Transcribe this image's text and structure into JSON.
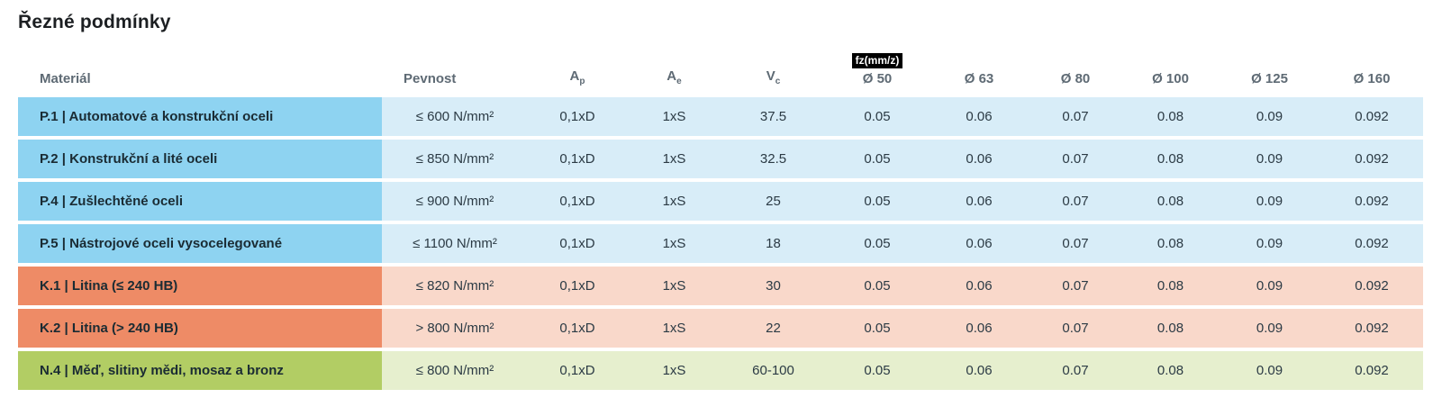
{
  "title": "Řezné podmínky",
  "colors": {
    "steel_dark": "#8ed3f1",
    "steel_light": "#d8edf8",
    "castiron_dark": "#ee8b66",
    "castiron_light": "#f9d8ca",
    "nonferrous_dark": "#b2cd64",
    "nonferrous_light": "#e6efce",
    "header_text": "#5e6a74",
    "badge_bg": "#000000",
    "badge_text": "#ffffff"
  },
  "table": {
    "badge": "fz(mm/z)",
    "headers": {
      "material": "Materiál",
      "pevnost": "Pevnost",
      "ap_main": "A",
      "ap_sub": "p",
      "ae_main": "A",
      "ae_sub": "e",
      "vc_main": "V",
      "vc_sub": "c",
      "d50": "Ø 50",
      "d63": "Ø 63",
      "d80": "Ø 80",
      "d100": "Ø 100",
      "d125": "Ø 125",
      "d160": "Ø 160"
    },
    "rows": [
      {
        "group": "P",
        "material": "P.1 | Automatové a konstrukční oceli",
        "pevnost": "≤ 600 N/mm²",
        "ap": "0,1xD",
        "ae": "1xS",
        "vc": "37.5",
        "fz": [
          "0.05",
          "0.06",
          "0.07",
          "0.08",
          "0.09",
          "0.092"
        ]
      },
      {
        "group": "P",
        "material": "P.2 | Konstrukční a lité oceli",
        "pevnost": "≤ 850 N/mm²",
        "ap": "0,1xD",
        "ae": "1xS",
        "vc": "32.5",
        "fz": [
          "0.05",
          "0.06",
          "0.07",
          "0.08",
          "0.09",
          "0.092"
        ]
      },
      {
        "group": "P",
        "material": "P.4 | Zušlechtěné oceli",
        "pevnost": "≤ 900 N/mm²",
        "ap": "0,1xD",
        "ae": "1xS",
        "vc": "25",
        "fz": [
          "0.05",
          "0.06",
          "0.07",
          "0.08",
          "0.09",
          "0.092"
        ]
      },
      {
        "group": "P",
        "material": "P.5 | Nástrojové oceli vysocelegované",
        "pevnost": "≤ 1100 N/mm²",
        "ap": "0,1xD",
        "ae": "1xS",
        "vc": "18",
        "fz": [
          "0.05",
          "0.06",
          "0.07",
          "0.08",
          "0.09",
          "0.092"
        ]
      },
      {
        "group": "K",
        "material": "K.1 | Litina (≤ 240 HB)",
        "pevnost": "≤ 820 N/mm²",
        "ap": "0,1xD",
        "ae": "1xS",
        "vc": "30",
        "fz": [
          "0.05",
          "0.06",
          "0.07",
          "0.08",
          "0.09",
          "0.092"
        ]
      },
      {
        "group": "K",
        "material": "K.2 | Litina (> 240 HB)",
        "pevnost": "> 800 N/mm²",
        "ap": "0,1xD",
        "ae": "1xS",
        "vc": "22",
        "fz": [
          "0.05",
          "0.06",
          "0.07",
          "0.08",
          "0.09",
          "0.092"
        ]
      },
      {
        "group": "N",
        "material": "N.4 | Měď, slitiny mědi, mosaz a bronz",
        "pevnost": "≤ 800 N/mm²",
        "ap": "0,1xD",
        "ae": "1xS",
        "vc": "60-100",
        "fz": [
          "0.05",
          "0.06",
          "0.07",
          "0.08",
          "0.09",
          "0.092"
        ]
      }
    ]
  }
}
